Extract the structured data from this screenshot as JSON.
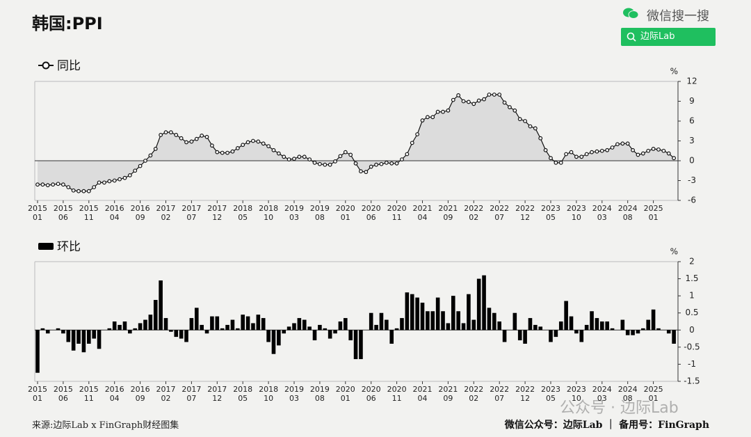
{
  "title": "韩国:PPI",
  "search_brand": "微信搜一搜",
  "search_box": "边际Lab",
  "source": "来源:边际Lab x FinGraph财经图集",
  "footer_right": "微信公众号：边际Lab ｜ 备用号：FinGraph",
  "watermark": "公众号 · 边际Lab",
  "chart_data": [
    {
      "type": "line",
      "categories": [
        "2015\n01",
        null,
        null,
        null,
        null,
        "2015\n06",
        null,
        null,
        null,
        null,
        "2015\n11",
        null,
        null,
        null,
        null,
        "2016\n04",
        null,
        null,
        null,
        null,
        "2016\n09",
        null,
        null,
        null,
        null,
        "2017\n02",
        null,
        null,
        null,
        null,
        "2017\n07",
        null,
        null,
        null,
        null,
        "2017\n12",
        null,
        null,
        null,
        null,
        "2018\n05",
        null,
        null,
        null,
        null,
        "2018\n10",
        null,
        null,
        null,
        null,
        "2019\n03",
        null,
        null,
        null,
        null,
        "2019\n08",
        null,
        null,
        null,
        null,
        "2020\n01",
        null,
        null,
        null,
        null,
        "2020\n06",
        null,
        null,
        null,
        null,
        "2020\n11",
        null,
        null,
        null,
        null,
        "2021\n04",
        null,
        null,
        null,
        null,
        "2021\n09",
        null,
        null,
        null,
        null,
        "2022\n02",
        null,
        null,
        null,
        null,
        "2022\n07",
        null,
        null,
        null,
        null,
        "2022\n12",
        null,
        null,
        null,
        null,
        "2023\n05",
        null,
        null,
        null,
        null,
        "2023\n10",
        null,
        null,
        null,
        null,
        "2024\n03",
        null,
        null,
        null,
        null,
        "2024\n08",
        null,
        null,
        null,
        null,
        "2025\n01",
        null,
        null,
        null,
        null
      ],
      "series": [
        {
          "name": "同比",
          "color": "#111111",
          "fill": "#dcdcdc",
          "values": [
            -3.6,
            -3.6,
            -3.7,
            -3.6,
            -3.5,
            -3.6,
            -4.0,
            -4.5,
            -4.6,
            -4.6,
            -4.6,
            -4.0,
            -3.3,
            -3.3,
            -3.1,
            -3.0,
            -2.8,
            -2.6,
            -2.2,
            -1.5,
            -0.8,
            0.0,
            0.8,
            1.8,
            3.9,
            4.3,
            4.3,
            3.9,
            3.4,
            2.8,
            2.9,
            3.3,
            3.8,
            3.6,
            2.3,
            1.3,
            1.2,
            1.2,
            1.4,
            1.9,
            2.4,
            2.8,
            3.0,
            2.9,
            2.6,
            2.2,
            1.6,
            1.1,
            0.6,
            0.2,
            0.3,
            0.6,
            0.6,
            0.2,
            -0.3,
            -0.5,
            -0.6,
            -0.6,
            -0.1,
            0.7,
            1.3,
            0.9,
            -0.4,
            -1.6,
            -1.7,
            -0.9,
            -0.6,
            -0.5,
            -0.3,
            -0.4,
            -0.4,
            0.2,
            1.0,
            2.7,
            4.0,
            6.1,
            6.6,
            6.6,
            7.4,
            7.4,
            7.6,
            9.2,
            9.9,
            9.0,
            8.9,
            8.6,
            9.1,
            9.3,
            10.0,
            10.0,
            10.0,
            8.8,
            8.1,
            7.6,
            6.3,
            6.0,
            5.2,
            4.9,
            3.4,
            1.6,
            0.4,
            -0.3,
            -0.3,
            1.0,
            1.3,
            0.6,
            0.6,
            1.0,
            1.3,
            1.4,
            1.5,
            1.6,
            2.0,
            2.5,
            2.6,
            2.6,
            1.6,
            0.9,
            1.1,
            1.5,
            1.8,
            1.7,
            1.5,
            1.1,
            0.4
          ]
        }
      ],
      "ylabel": "%",
      "ylim": [
        -6,
        12
      ],
      "yticks": [
        -6,
        -3,
        0,
        3,
        6,
        9,
        12
      ],
      "grid": false
    },
    {
      "type": "bar",
      "categories": [
        "2015\n01",
        null,
        null,
        null,
        null,
        "2015\n06",
        null,
        null,
        null,
        null,
        "2015\n11",
        null,
        null,
        null,
        null,
        "2016\n04",
        null,
        null,
        null,
        null,
        "2016\n09",
        null,
        null,
        null,
        null,
        "2017\n02",
        null,
        null,
        null,
        null,
        "2017\n07",
        null,
        null,
        null,
        null,
        "2017\n12",
        null,
        null,
        null,
        null,
        "2018\n05",
        null,
        null,
        null,
        null,
        "2018\n10",
        null,
        null,
        null,
        null,
        "2019\n03",
        null,
        null,
        null,
        null,
        "2019\n08",
        null,
        null,
        null,
        null,
        "2020\n01",
        null,
        null,
        null,
        null,
        "2020\n06",
        null,
        null,
        null,
        null,
        "2020\n11",
        null,
        null,
        null,
        null,
        "2021\n04",
        null,
        null,
        null,
        null,
        "2021\n09",
        null,
        null,
        null,
        null,
        "2022\n02",
        null,
        null,
        null,
        null,
        "2022\n07",
        null,
        null,
        null,
        null,
        "2022\n12",
        null,
        null,
        null,
        null,
        "2023\n05",
        null,
        null,
        null,
        null,
        "2023\n10",
        null,
        null,
        null,
        null,
        "2024\n03",
        null,
        null,
        null,
        null,
        "2024\n08",
        null,
        null,
        null,
        null,
        "2025\n01",
        null,
        null,
        null,
        null
      ],
      "series": [
        {
          "name": "环比",
          "color": "#000000",
          "values": [
            -1.25,
            0.05,
            -0.1,
            0.0,
            0.05,
            -0.1,
            -0.35,
            -0.6,
            -0.4,
            -0.65,
            -0.4,
            -0.25,
            -0.55,
            0.0,
            0.05,
            0.25,
            0.15,
            0.25,
            -0.1,
            0.05,
            0.2,
            0.3,
            0.45,
            0.88,
            1.45,
            0.35,
            -0.05,
            -0.2,
            -0.25,
            -0.35,
            0.35,
            0.65,
            0.15,
            -0.1,
            0.4,
            0.4,
            0.05,
            0.15,
            0.3,
            0.05,
            0.45,
            0.4,
            0.2,
            0.45,
            0.35,
            -0.35,
            -0.7,
            -0.45,
            -0.1,
            0.1,
            0.2,
            0.35,
            0.3,
            0.1,
            -0.3,
            0.15,
            0.05,
            -0.25,
            -0.1,
            0.25,
            0.35,
            -0.3,
            -0.85,
            -0.85,
            0.0,
            0.5,
            0.15,
            0.5,
            0.3,
            -0.4,
            0.05,
            0.35,
            1.1,
            1.05,
            0.95,
            0.8,
            0.55,
            0.55,
            0.95,
            0.55,
            0.2,
            1.0,
            0.55,
            0.2,
            1.05,
            0.3,
            1.5,
            1.6,
            0.65,
            0.5,
            0.25,
            -0.35,
            0.0,
            0.5,
            -0.3,
            -0.4,
            0.35,
            0.15,
            0.1,
            0.0,
            -0.35,
            -0.2,
            0.25,
            0.85,
            0.4,
            -0.1,
            -0.35,
            0.15,
            0.55,
            0.35,
            0.25,
            0.25,
            0.05,
            0.0,
            0.3,
            -0.15,
            -0.15,
            -0.1,
            0.05,
            0.3,
            0.6,
            0.05,
            0.0,
            -0.1,
            -0.4
          ]
        }
      ],
      "ylabel": "%",
      "ylim": [
        -1.5,
        2
      ],
      "yticks": [
        -1.5,
        -1,
        -0.5,
        0,
        0.5,
        1,
        1.5,
        2
      ],
      "grid": false
    }
  ]
}
